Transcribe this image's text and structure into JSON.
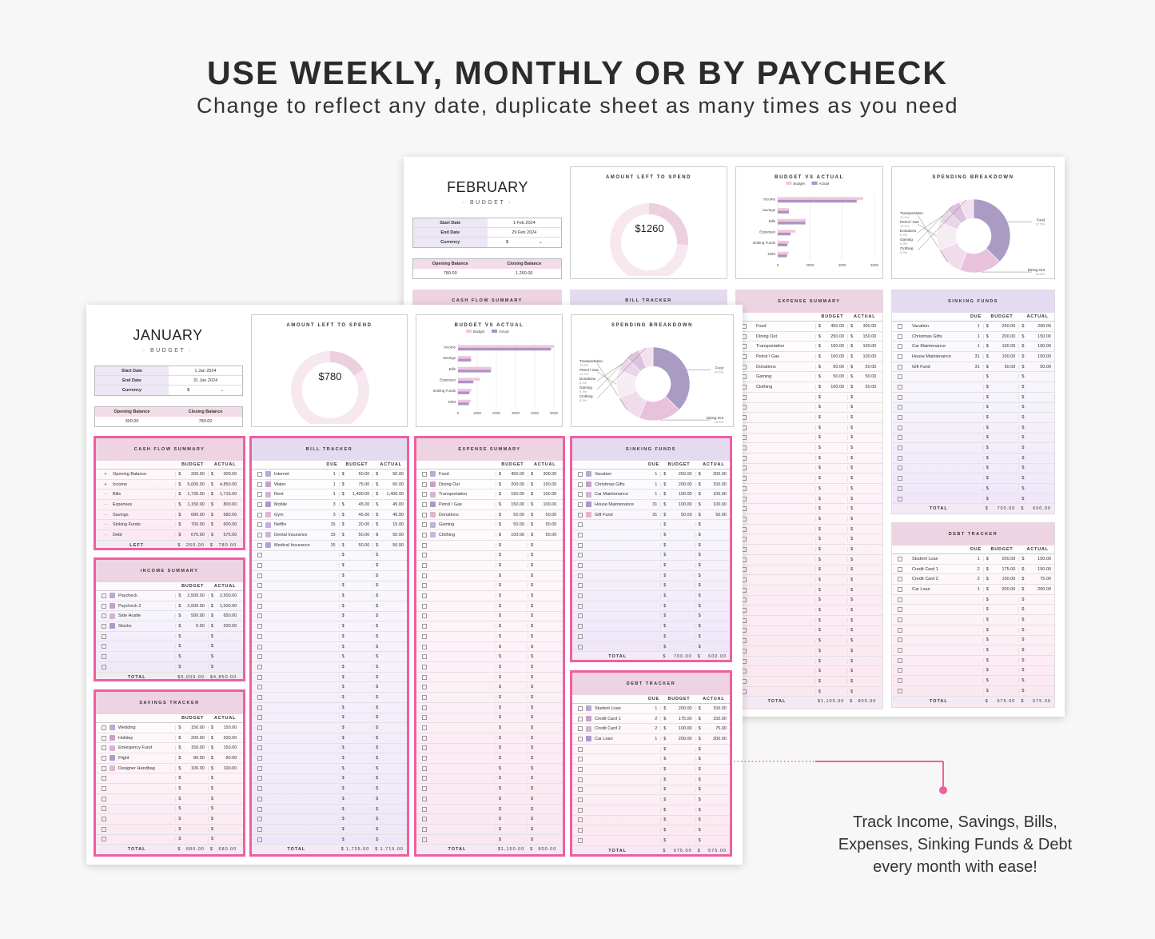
{
  "header": {
    "title": "USE WEEKLY, MONTHLY OR BY PAYCHECK",
    "subtitle": "Change to reflect any date, duplicate sheet as many times as you need"
  },
  "callout": {
    "line1": "Track Income, Savings, Bills,",
    "line2": "Expenses, Sinking Funds & Debt",
    "line3": "every month with ease!"
  },
  "colors": {
    "highlight": "#ef5fa0",
    "pink": "#eed3e2",
    "lavender": "#e4dbf1",
    "purple": "#a79bbd",
    "budget_bar": "#f3c4dc",
    "actual_bar": "#a797c3"
  },
  "february": {
    "month": "FEBRUARY",
    "budget_label": "· BUDGET ·",
    "start_label": "Start Date",
    "start": "1 Feb 2024",
    "end_label": "End Date",
    "end": "29 Feb 2024",
    "currency_label": "Currency",
    "currency": "$",
    "opening_label": "Opening Balance",
    "opening": "780.00",
    "closing_label": "Closing Balance",
    "closing": "1,260.00",
    "amount_title": "AMOUNT LEFT TO SPEND",
    "amount": "$1260",
    "bva_title": "BUDGET VS ACTUAL",
    "spending_title": "SPENDING BREAKDOWN",
    "cashflow_title": "CASH FLOW SUMMARY",
    "bill_title": "BILL TRACKER",
    "expense": {
      "title": "EXPENSE SUMMARY",
      "budget_h": "BUDGET",
      "actual_h": "ACTUAL",
      "rows": [
        {
          "name": "Food",
          "budget": "450.00",
          "actual": "300.00"
        },
        {
          "name": "Dining Out",
          "budget": "250.00",
          "actual": "150.00"
        },
        {
          "name": "Transportation",
          "budget": "100.00",
          "actual": "100.00"
        },
        {
          "name": "Petrol / Gas",
          "budget": "100.00",
          "actual": "100.00"
        },
        {
          "name": "Donations",
          "budget": "50.00",
          "actual": "50.00"
        },
        {
          "name": "Gaming",
          "budget": "50.00",
          "actual": "50.00"
        },
        {
          "name": "Clothing",
          "budget": "100.00",
          "actual": "50.00"
        }
      ],
      "total_label": "TOTAL",
      "total_budget": "1,100.00",
      "total_actual": "800.00"
    },
    "sinking": {
      "title": "SINKING FUNDS",
      "due_h": "DUE",
      "budget_h": "BUDGET",
      "actual_h": "ACTUAL",
      "rows": [
        {
          "name": "Vacation",
          "due": "1",
          "budget": "250.00",
          "actual": "200.00"
        },
        {
          "name": "Christmas Gifts",
          "due": "1",
          "budget": "200.00",
          "actual": "150.00"
        },
        {
          "name": "Car Maintenance",
          "due": "1",
          "budget": "100.00",
          "actual": "100.00"
        },
        {
          "name": "House Maintenance",
          "due": "31",
          "budget": "100.00",
          "actual": "100.00"
        },
        {
          "name": "Gift Fund",
          "due": "31",
          "budget": "50.00",
          "actual": "50.00"
        }
      ],
      "total_label": "TOTAL",
      "total_budget": "700.00",
      "total_actual": "600.00"
    },
    "debt": {
      "title": "DEBT TRACKER",
      "due_h": "DUE",
      "budget_h": "BUDGET",
      "actual_h": "ACTUAL",
      "rows": [
        {
          "name": "Student Loan",
          "due": "1",
          "budget": "200.00",
          "actual": "150.00"
        },
        {
          "name": "Credit Card 1",
          "due": "2",
          "budget": "175.00",
          "actual": "150.00"
        },
        {
          "name": "Credit Card 2",
          "due": "2",
          "budget": "100.00",
          "actual": "75.00"
        },
        {
          "name": "Car Loan",
          "due": "1",
          "budget": "200.00",
          "actual": "200.00"
        }
      ],
      "total_label": "TOTAL",
      "total_budget": "675.00",
      "total_actual": "575.00"
    }
  },
  "january": {
    "month": "JANUARY",
    "budget_label": "· BUDGET ·",
    "start_label": "Start Date",
    "start": "1 Jan 2024",
    "end_label": "End Date",
    "end": "31 Jan 2024",
    "currency_label": "Currency",
    "currency": "$",
    "opening_label": "Opening Balance",
    "opening": "300.00",
    "closing_label": "Closing Balance",
    "closing": "780.00",
    "amount_title": "AMOUNT LEFT TO SPEND",
    "amount": "$780",
    "bva_title": "BUDGET VS ACTUAL",
    "spending_title": "SPENDING BREAKDOWN",
    "cashflow": {
      "title": "CASH FLOW SUMMARY",
      "budget_h": "BUDGET",
      "actual_h": "ACTUAL",
      "rows": [
        {
          "sign": "+",
          "name": "Opening Balance",
          "budget": "200.00",
          "actual": "300.00"
        },
        {
          "sign": "+",
          "name": "Income",
          "budget": "5,000.00",
          "actual": "4,850.00"
        },
        {
          "sign": "-",
          "name": "Bills",
          "budget": "1,735.00",
          "actual": "1,715.00"
        },
        {
          "sign": "-",
          "name": "Expenses",
          "budget": "1,150.00",
          "actual": "800.00"
        },
        {
          "sign": "-",
          "name": "Savings",
          "budget": "680.00",
          "actual": "680.00"
        },
        {
          "sign": "-",
          "name": "Sinking Funds",
          "budget": "700.00",
          "actual": "600.00"
        },
        {
          "sign": "-",
          "name": "Debt",
          "budget": "675.00",
          "actual": "575.00"
        }
      ],
      "left_label": "LEFT",
      "left_budget": "260.00",
      "left_actual": "780.00"
    },
    "income": {
      "title": "INCOME SUMMARY",
      "budget_h": "BUDGET",
      "actual_h": "ACTUAL",
      "rows": [
        {
          "name": "Paycheck",
          "budget": "2,500.00",
          "actual": "2,500.00"
        },
        {
          "name": "Paycheck 2",
          "budget": "2,000.00",
          "actual": "1,500.00"
        },
        {
          "name": "Side Hustle",
          "budget": "500.00",
          "actual": "650.00"
        },
        {
          "name": "Stocks",
          "budget": "0.00",
          "actual": "200.00"
        }
      ],
      "total_label": "TOTAL",
      "total_budget": "5,000.00",
      "total_actual": "4,850.00"
    },
    "savings": {
      "title": "SAVINGS TRACKER",
      "budget_h": "BUDGET",
      "actual_h": "ACTUAL",
      "rows": [
        {
          "name": "Wedding",
          "budget": "150.00",
          "actual": "150.00"
        },
        {
          "name": "Holiday",
          "budget": "200.00",
          "actual": "200.00"
        },
        {
          "name": "Emergency Fund",
          "budget": "150.00",
          "actual": "150.00"
        },
        {
          "name": "Flight",
          "budget": "80.00",
          "actual": "80.00"
        },
        {
          "name": "Designer Handbag",
          "budget": "100.00",
          "actual": "100.00"
        }
      ],
      "total_label": "TOTAL",
      "total_budget": "680.00",
      "total_actual": "680.00"
    },
    "bills": {
      "title": "BILL TRACKER",
      "due_h": "DUE",
      "budget_h": "BUDGET",
      "actual_h": "ACTUAL",
      "rows": [
        {
          "name": "Internet",
          "due": "1",
          "budget": "50.00",
          "actual": "50.00"
        },
        {
          "name": "Water",
          "due": "1",
          "budget": "75.00",
          "actual": "60.00"
        },
        {
          "name": "Rent",
          "due": "1",
          "budget": "1,400.00",
          "actual": "1,400.00"
        },
        {
          "name": "Mobile",
          "due": "3",
          "budget": "45.00",
          "actual": "45.00"
        },
        {
          "name": "Gym",
          "due": "3",
          "budget": "45.00",
          "actual": "45.00"
        },
        {
          "name": "Netflix",
          "due": "15",
          "budget": "20.00",
          "actual": "15.00"
        },
        {
          "name": "Dental Insurance",
          "due": "15",
          "budget": "50.00",
          "actual": "50.00"
        },
        {
          "name": "Medical Insurance",
          "due": "15",
          "budget": "50.00",
          "actual": "50.00"
        }
      ],
      "total_label": "TOTAL",
      "total_budget": "1,735.00",
      "total_actual": "1,715.00"
    },
    "expense": {
      "title": "EXPENSE SUMMARY",
      "budget_h": "BUDGET",
      "actual_h": "ACTUAL",
      "rows": [
        {
          "name": "Food",
          "budget": "450.00",
          "actual": "300.00"
        },
        {
          "name": "Dining Out",
          "budget": "200.00",
          "actual": "150.00"
        },
        {
          "name": "Transportation",
          "budget": "150.00",
          "actual": "100.00"
        },
        {
          "name": "Petrol / Gas",
          "budget": "150.00",
          "actual": "100.00"
        },
        {
          "name": "Donations",
          "budget": "50.00",
          "actual": "50.00"
        },
        {
          "name": "Gaming",
          "budget": "50.00",
          "actual": "50.00"
        },
        {
          "name": "Clothing",
          "budget": "100.00",
          "actual": "50.00"
        }
      ],
      "total_label": "TOTAL",
      "total_budget": "1,150.00",
      "total_actual": "800.00"
    },
    "sinking": {
      "title": "SINKING FUNDS",
      "due_h": "DUE",
      "budget_h": "BUDGET",
      "actual_h": "ACTUAL",
      "rows": [
        {
          "name": "Vacation",
          "due": "1",
          "budget": "250.00",
          "actual": "200.00"
        },
        {
          "name": "Christmas Gifts",
          "due": "1",
          "budget": "200.00",
          "actual": "150.00"
        },
        {
          "name": "Car Maintenance",
          "due": "1",
          "budget": "100.00",
          "actual": "100.00"
        },
        {
          "name": "House Maintenance",
          "due": "31",
          "budget": "100.00",
          "actual": "100.00"
        },
        {
          "name": "Gift Fund",
          "due": "31",
          "budget": "50.00",
          "actual": "50.00"
        }
      ],
      "total_label": "TOTAL",
      "total_budget": "700.00",
      "total_actual": "600.00"
    },
    "debt": {
      "title": "DEBT TRACKER",
      "due_h": "DUE",
      "budget_h": "BUDGET",
      "actual_h": "ACTUAL",
      "rows": [
        {
          "name": "Student Loan",
          "due": "1",
          "budget": "200.00",
          "actual": "150.00"
        },
        {
          "name": "Credit Card 1",
          "due": "2",
          "budget": "175.00",
          "actual": "150.00"
        },
        {
          "name": "Credit Card 2",
          "due": "2",
          "budget": "100.00",
          "actual": "75.00"
        },
        {
          "name": "Car Loan",
          "due": "1",
          "budget": "200.00",
          "actual": "200.00"
        }
      ],
      "total_label": "TOTAL",
      "total_budget": "675.00",
      "total_actual": "575.00"
    }
  },
  "chart_data": [
    {
      "type": "pie",
      "title": "AMOUNT LEFT TO SPEND",
      "sheet": "february",
      "categories": [
        "Left",
        "Spent"
      ],
      "values": [
        1260,
        3590
      ],
      "center_label": "$1260"
    },
    {
      "type": "bar",
      "title": "BUDGET VS ACTUAL",
      "sheet": "february",
      "orientation": "horizontal",
      "categories": [
        "Income",
        "Savings",
        "Bills",
        "Expenses",
        "Sinking Funds",
        "Debt"
      ],
      "series": [
        {
          "name": "Budget",
          "values": [
            5300,
            700,
            1735,
            1100,
            700,
            675
          ]
        },
        {
          "name": "Actual",
          "values": [
            4900,
            700,
            1715,
            800,
            600,
            575
          ]
        }
      ],
      "xticks": [
        "0",
        "2000",
        "4000",
        "6000"
      ],
      "xlim": [
        0,
        6000
      ]
    },
    {
      "type": "pie",
      "title": "SPENDING BREAKDOWN",
      "sheet": "february",
      "categories": [
        "Food",
        "Dining Out",
        "Transportation",
        "Petrol / Gas",
        "Donations",
        "Gaming",
        "Clothing"
      ],
      "values": [
        37.5,
        18.8,
        12.5,
        12.5,
        6.3,
        6.3,
        6.3
      ],
      "labels": [
        "37.5%",
        "18.8%",
        "12.5%",
        "12.5%",
        "6.3%",
        "6.3%",
        "6.3%"
      ]
    },
    {
      "type": "pie",
      "title": "AMOUNT LEFT TO SPEND",
      "sheet": "january",
      "categories": [
        "Left",
        "Spent"
      ],
      "values": [
        780,
        4070
      ],
      "center_label": "$780"
    },
    {
      "type": "bar",
      "title": "BUDGET VS ACTUAL",
      "sheet": "january",
      "orientation": "horizontal",
      "categories": [
        "Income",
        "Savings",
        "Bills",
        "Expenses",
        "Sinking Funds",
        "Debt"
      ],
      "series": [
        {
          "name": "Budget",
          "values": [
            5000,
            680,
            1735,
            1150,
            700,
            675
          ]
        },
        {
          "name": "Actual",
          "values": [
            4850,
            680,
            1715,
            800,
            600,
            575
          ]
        }
      ],
      "xticks": [
        "0",
        "1000",
        "2000",
        "3000",
        "4000",
        "5000"
      ],
      "xlim": [
        0,
        5000
      ]
    },
    {
      "type": "pie",
      "title": "SPENDING BREAKDOWN",
      "sheet": "january",
      "categories": [
        "Food",
        "Dining Out",
        "Transportation",
        "Petrol / Gas",
        "Donations",
        "Gaming",
        "Clothing"
      ],
      "values": [
        37.5,
        18.8,
        12.5,
        12.5,
        6.3,
        6.3,
        6.3
      ],
      "labels": [
        "37.5%",
        "18.8%",
        "12.5%",
        "12.5%",
        "6.3%",
        "6.3%",
        "6.3%"
      ]
    }
  ]
}
